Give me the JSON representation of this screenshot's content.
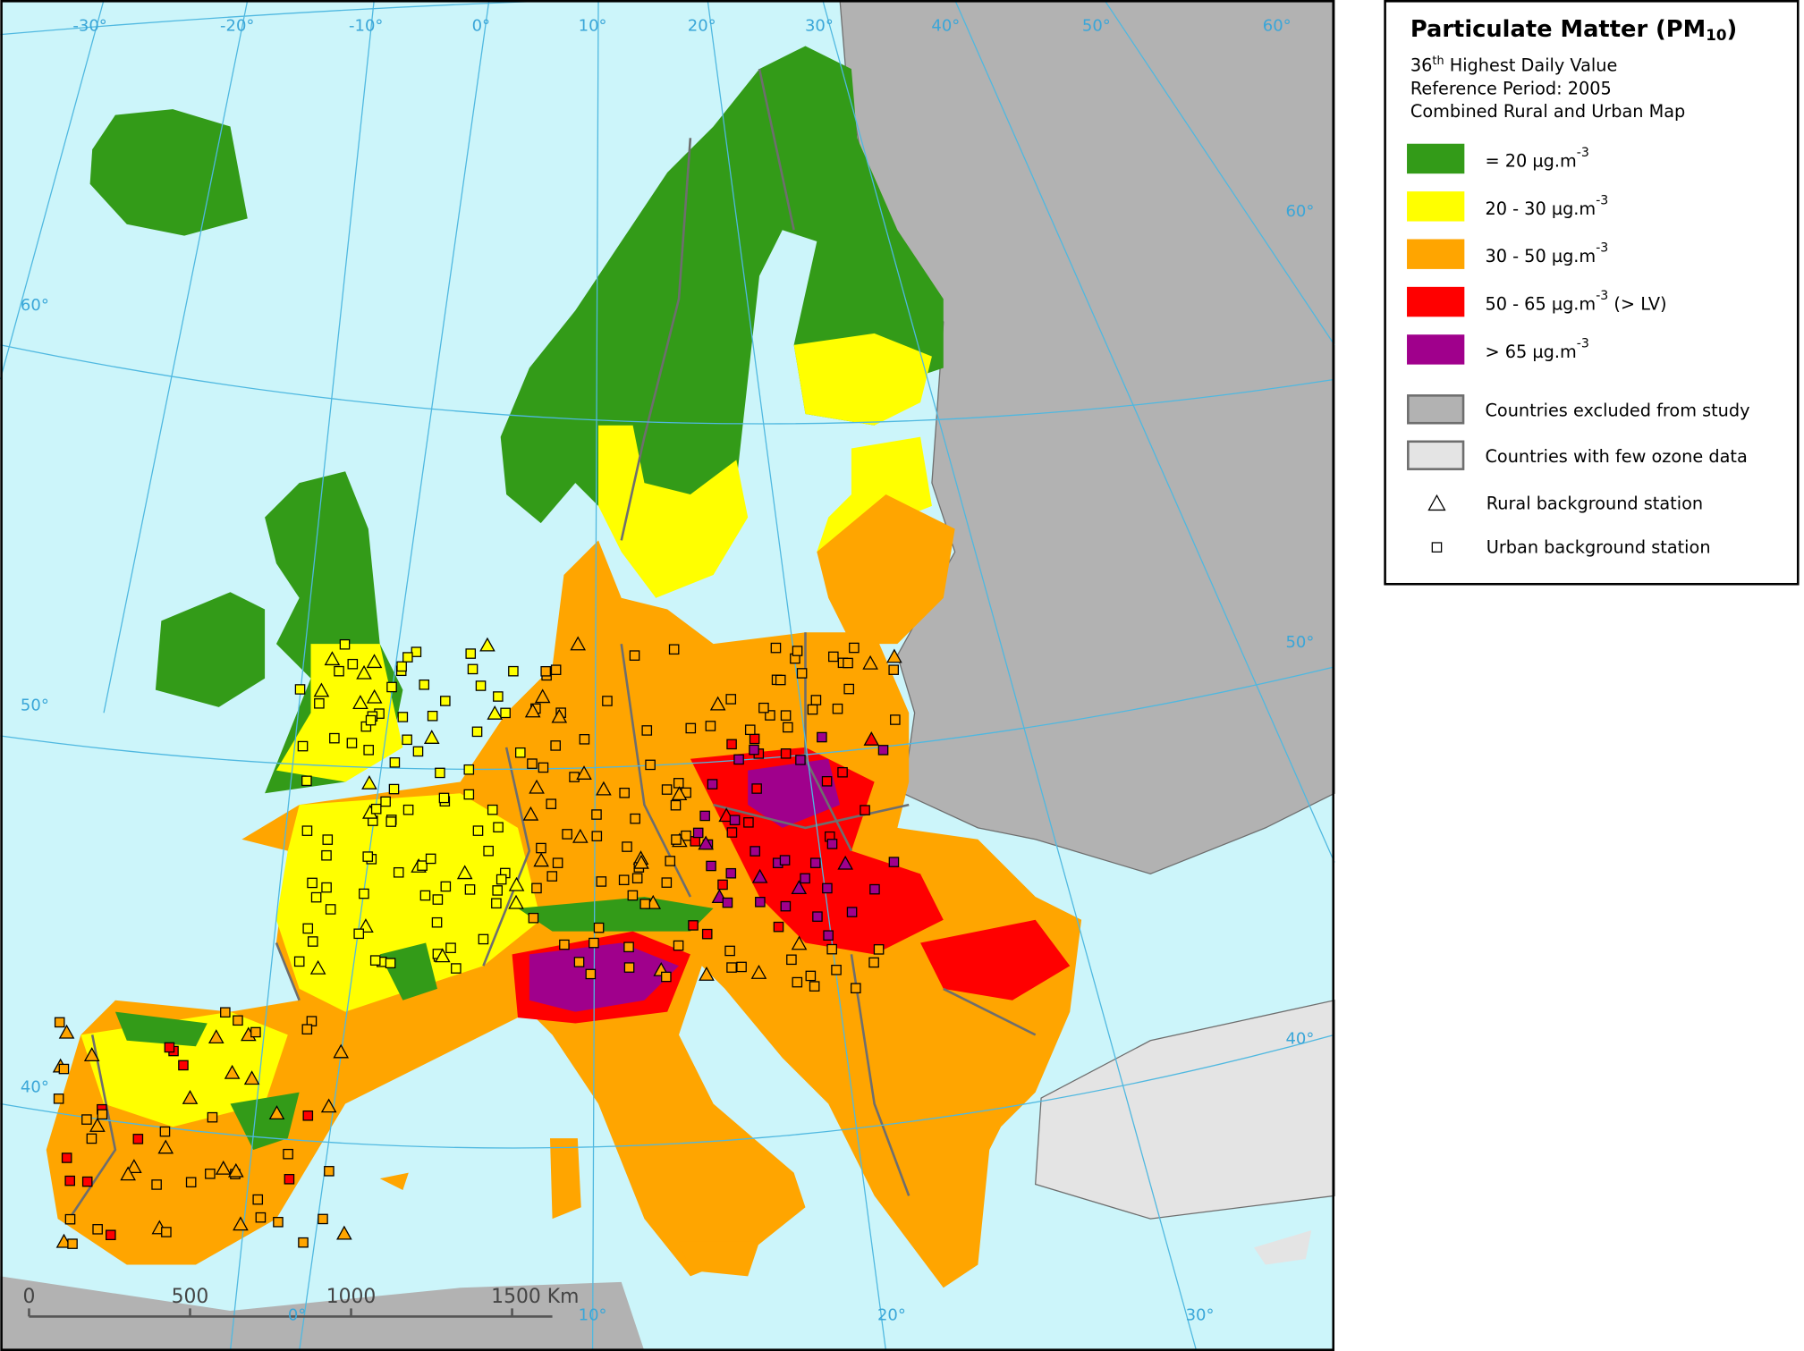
{
  "legend": {
    "title": [
      "Particulate Matter (PM",
      "10",
      ")"
    ],
    "subtitle": {
      "line1": [
        "36",
        "th",
        " Highest Daily Value"
      ],
      "line2": "Reference Period: 2005",
      "line3": "Combined Rural and Urban Map"
    },
    "classes": [
      {
        "label": "= 20 µg.m",
        "sup": "-3",
        "color": "#339b18"
      },
      {
        "label": "20 - 30 µg.m",
        "sup": "-3",
        "color": "#ffff00"
      },
      {
        "label": "30 - 50 µg.m",
        "sup": "-3",
        "color": "#ffa500"
      },
      {
        "label": "50 - 65 µg.m",
        "sup": "-3",
        "suffix": " (> LV)",
        "color": "#ff0000"
      },
      {
        "label": "> 65 µg.m",
        "sup": "-3",
        "color": "#a0008c"
      }
    ],
    "areas": [
      {
        "label": "Countries excluded from study",
        "color": "#b2b2b2"
      },
      {
        "label": "Countries with few ozone data",
        "color": "#e4e4e4"
      }
    ],
    "stations": [
      {
        "label": "Rural background station",
        "symbol": "triangle"
      },
      {
        "label": "Urban background station",
        "symbol": "square"
      }
    ]
  },
  "graticule_labels": [
    "-30°",
    "-20°",
    "-10°",
    "0°",
    "10°",
    "20°",
    "30°",
    "40°",
    "50°",
    "60°",
    "60°",
    "50°",
    "40°",
    "60°",
    "50°",
    "40°",
    "0°",
    "10°",
    "20°",
    "30°"
  ],
  "scale_bar": [
    "0",
    "500",
    "1000",
    "1500 Km"
  ]
}
